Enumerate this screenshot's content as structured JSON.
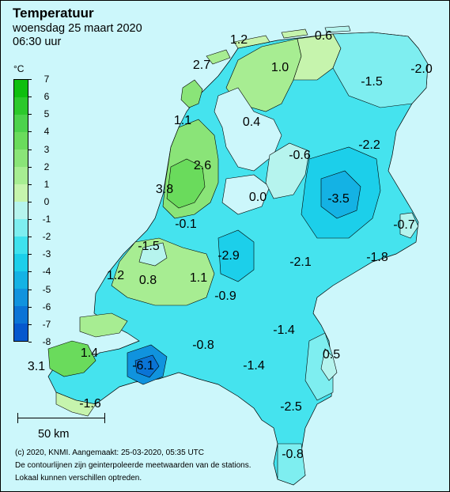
{
  "title": "Temperatuur",
  "subtitle": "woensdag 25 maart 2020",
  "time": "06:30 uur",
  "legend": {
    "unit": "°C",
    "ticks": [
      "7",
      "6",
      "5",
      "4",
      "3",
      "2",
      "1",
      "0",
      "-1",
      "-2",
      "-3",
      "-4",
      "-5",
      "-6",
      "-7",
      "-8"
    ],
    "colors": [
      "#0fbf0f",
      "#2cc92c",
      "#4cd24c",
      "#6adb5c",
      "#8ae478",
      "#a7ed92",
      "#c6f4ad",
      "#b6f4ee",
      "#7eeef0",
      "#3fe2ee",
      "#1ccfea",
      "#14b2e4",
      "#1093de",
      "#0a74d6",
      "#0558ce"
    ]
  },
  "scale": {
    "label": "50 km"
  },
  "footer": {
    "line1": "(c) 2020, KNMI. Aangemaakt: 25-03-2020, 05:35 UTC",
    "line2": "De contourlijnen zijn geinterpoleerde meetwaarden van de stations.",
    "line3": "Lokaal kunnen verschillen optreden."
  },
  "stations": [
    "1.2",
    "0.6",
    "2.7",
    "1.0",
    "-1.5",
    "-2.0",
    "1.1",
    "0.4",
    "-2.2",
    "-0.6",
    "2.6",
    "3.8",
    "0.0",
    "-3.5",
    "-0.7",
    "-0.1",
    "-1.5",
    "-2.9",
    "-2.1",
    "-1.8",
    "1.2",
    "0.8",
    "1.1",
    "-0.9",
    "-1.4",
    "1.4",
    "-0.8",
    "0.5",
    "3.1",
    "-6.1",
    "-1.4",
    "-1.6",
    "-2.5",
    "-0.8"
  ]
}
